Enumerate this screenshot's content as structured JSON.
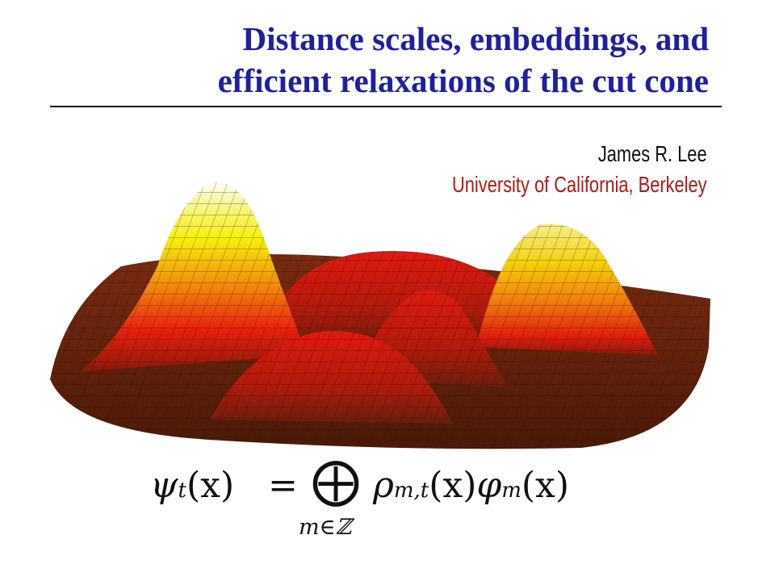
{
  "slide": {
    "title_line1": "Distance scales, embeddings, and",
    "title_line2": "efficient relaxations of the cut cone",
    "author": "James R. Lee",
    "affiliation": "University of California, Berkeley"
  },
  "formula": {
    "lhs_symbol": "ψ",
    "lhs_sub": "t",
    "lhs_arg": "(x)",
    "equals": "=",
    "operator": "⨁",
    "index": "m∈ℤ",
    "rho": "ρ",
    "rho_sub": "m,t",
    "rho_arg": "(x)",
    "phi": "φ",
    "phi_sub": "m",
    "phi_arg": "(x)"
  },
  "colors": {
    "title": "#1f1fa0",
    "affiliation": "#b01818",
    "surface_low": "#5a1f0c",
    "surface_mid": "#e8200c",
    "surface_high": "#f7f00a",
    "surface_peak": "#ffffff"
  }
}
